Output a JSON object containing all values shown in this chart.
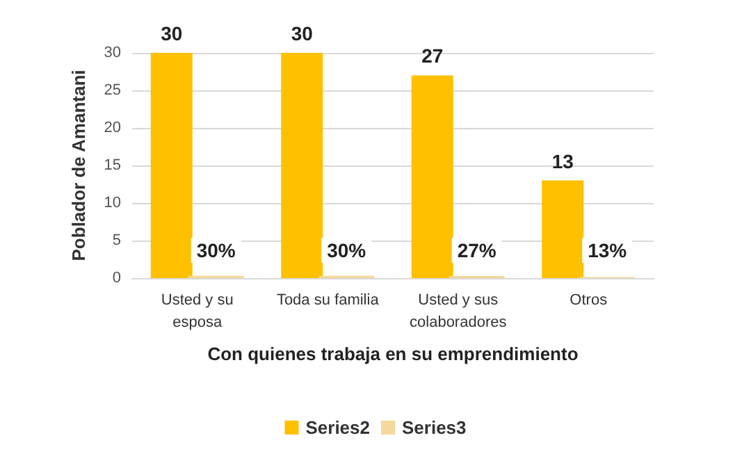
{
  "chart_data": {
    "type": "bar",
    "xlabel": "Con quienes trabaja en su emprendimiento",
    "ylabel": "Poblador de Amantani",
    "categories": [
      "Usted y su\nesposa",
      "Toda su familia",
      "Usted y sus\ncolaboradores",
      "Otros"
    ],
    "series": [
      {
        "name": "Series2",
        "color": "#ffc000",
        "values": [
          30,
          30,
          27,
          13
        ],
        "value_labels": [
          "30",
          "30",
          "27",
          "13"
        ]
      },
      {
        "name": "Series3",
        "color": "#f5d99a",
        "values": [
          0.3,
          0.3,
          0.27,
          0.13
        ],
        "value_labels": [
          "30%",
          "30%",
          "27%",
          "13%"
        ]
      }
    ],
    "ylim": [
      0,
      30
    ],
    "yticks": [
      0,
      5,
      10,
      15,
      20,
      25,
      30
    ],
    "grid": "y",
    "legend": "bottom"
  }
}
